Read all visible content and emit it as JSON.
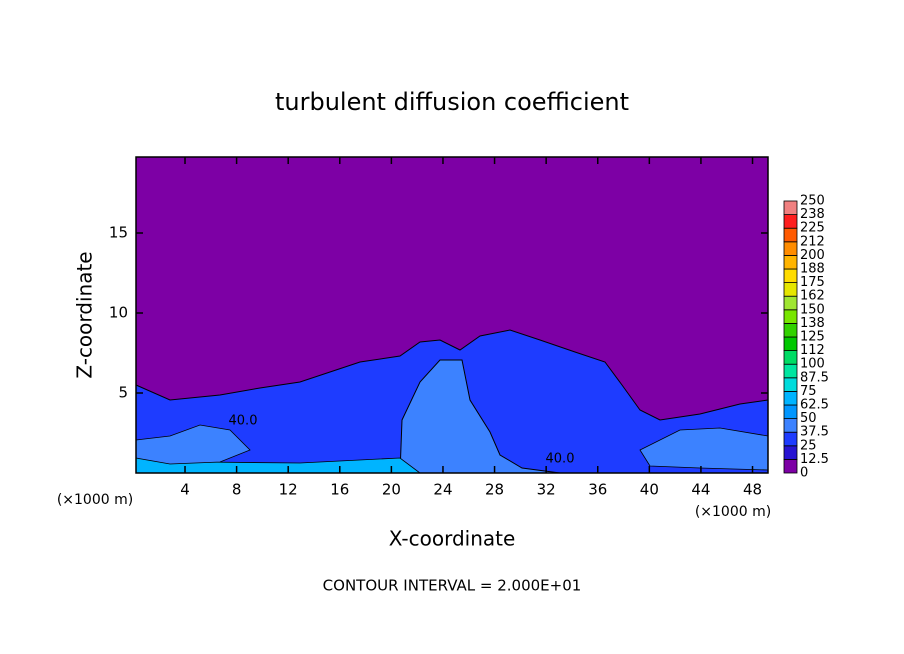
{
  "chart_data": {
    "type": "contour",
    "title": "turbulent diffusion coefficient",
    "x_label": "X-coordinate",
    "y_label": "Z-coordinate",
    "x_unit_label": "(×1000 m)",
    "y_unit_label": "(×1000 m)",
    "footer": "CONTOUR INTERVAL = 2.000E+01",
    "xlim": [
      0.2,
      49.2
    ],
    "xticks": [
      4,
      8,
      12,
      16,
      20,
      24,
      28,
      32,
      36,
      40,
      44,
      48
    ],
    "ylim": [
      0,
      19.75
    ],
    "yticks": [
      5,
      10,
      15
    ],
    "contour_labels": [
      "40.0",
      "40.0"
    ],
    "levels": [
      0,
      12.5,
      25,
      37.5,
      50,
      62.5,
      75,
      87.5,
      100,
      112,
      125,
      138,
      150,
      162,
      175,
      188,
      200,
      212,
      225,
      238,
      250
    ],
    "colors": [
      "#7d00a5",
      "#2814d2",
      "#1e3cff",
      "#3c82ff",
      "#0096ff",
      "#00b4ff",
      "#00dcdc",
      "#00e6a0",
      "#00dc64",
      "#00c800",
      "#32d200",
      "#78e600",
      "#a0e632",
      "#e6e600",
      "#ffdc00",
      "#ffb400",
      "#ff8c00",
      "#ff5a00",
      "#ff1e1e",
      "#f08080"
    ]
  }
}
